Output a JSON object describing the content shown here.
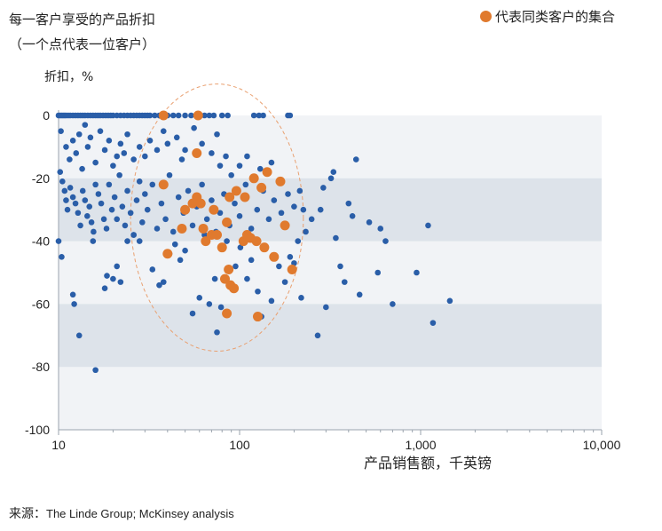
{
  "title": {
    "line1": "每一客户享受的产品折扣",
    "line2": "（一个点代表一位客户）"
  },
  "legend": {
    "label": "代表同类客户的集合",
    "color": "#e07a2e"
  },
  "source": {
    "prefix": "来源：",
    "text": "The Linde Group; McKinsey analysis"
  },
  "chart_data": {
    "type": "scatter",
    "xlabel": "产品销售额，千英镑",
    "ylabel": "折扣，%",
    "x_scale": "log",
    "xlim": [
      10,
      10000
    ],
    "ylim": [
      -100,
      0
    ],
    "x_ticks": [
      "10",
      "100",
      "1,000",
      "10,000"
    ],
    "y_ticks": [
      "0",
      "-20",
      "-40",
      "-60",
      "-80",
      "-100"
    ],
    "bands": [
      [
        -20,
        -40
      ],
      [
        -60,
        -80
      ]
    ],
    "colors": {
      "customer": "#2a5ea8",
      "cluster": "#e07a2e",
      "band": "#dde3ea",
      "background": "#f1f3f6",
      "ellipse": "#e9a070"
    },
    "cluster_ellipse": {
      "x_range": [
        25,
        225
      ],
      "y_range": [
        -75,
        10
      ]
    },
    "series": [
      {
        "name": "customer",
        "points": [
          [
            10,
            0
          ],
          [
            10.2,
            0
          ],
          [
            10.4,
            0
          ],
          [
            10.6,
            0
          ],
          [
            10.8,
            0
          ],
          [
            11,
            0
          ],
          [
            11.3,
            0
          ],
          [
            11.6,
            0
          ],
          [
            12,
            0
          ],
          [
            12.4,
            0
          ],
          [
            12.8,
            0
          ],
          [
            13.2,
            0
          ],
          [
            13.6,
            0
          ],
          [
            14,
            0
          ],
          [
            14.5,
            0
          ],
          [
            15,
            0
          ],
          [
            15.5,
            0
          ],
          [
            16,
            0
          ],
          [
            16.5,
            0
          ],
          [
            17,
            0
          ],
          [
            17.6,
            0
          ],
          [
            18.2,
            0
          ],
          [
            18.8,
            0
          ],
          [
            19.4,
            0
          ],
          [
            20,
            0
          ],
          [
            21,
            0
          ],
          [
            22,
            0
          ],
          [
            23,
            0
          ],
          [
            24,
            0
          ],
          [
            25,
            0
          ],
          [
            26,
            0
          ],
          [
            27,
            0
          ],
          [
            28,
            0
          ],
          [
            29,
            0
          ],
          [
            30,
            0
          ],
          [
            31,
            0
          ],
          [
            32,
            0
          ],
          [
            34,
            0
          ],
          [
            36,
            0
          ],
          [
            38,
            0
          ],
          [
            40,
            0
          ],
          [
            43,
            0
          ],
          [
            46,
            0
          ],
          [
            50,
            0
          ],
          [
            54,
            0
          ],
          [
            64,
            0
          ],
          [
            68,
            0
          ],
          [
            72,
            0
          ],
          [
            80,
            0
          ],
          [
            86,
            0
          ],
          [
            120,
            0
          ],
          [
            128,
            0
          ],
          [
            135,
            0
          ],
          [
            185,
            0
          ],
          [
            190,
            0
          ],
          [
            10.3,
            -5
          ],
          [
            11,
            -10
          ],
          [
            11.5,
            -14
          ],
          [
            12,
            -8
          ],
          [
            12.5,
            -12
          ],
          [
            13,
            -6
          ],
          [
            13.5,
            -17
          ],
          [
            14,
            -3
          ],
          [
            14.5,
            -10
          ],
          [
            15,
            -7
          ],
          [
            16,
            -15
          ],
          [
            17,
            -5
          ],
          [
            18,
            -11
          ],
          [
            19,
            -8
          ],
          [
            20,
            -16
          ],
          [
            21,
            -13
          ],
          [
            22,
            -9
          ],
          [
            23,
            -12
          ],
          [
            24,
            -6
          ],
          [
            26,
            -14
          ],
          [
            28,
            -10
          ],
          [
            30,
            -13
          ],
          [
            32,
            -8
          ],
          [
            35,
            -11
          ],
          [
            38,
            -5
          ],
          [
            40,
            -9
          ],
          [
            45,
            -7
          ],
          [
            48,
            -14
          ],
          [
            50,
            -11
          ],
          [
            56,
            -4
          ],
          [
            62,
            -9
          ],
          [
            70,
            -12
          ],
          [
            75,
            -6
          ],
          [
            78,
            -16
          ],
          [
            84,
            -13
          ],
          [
            90,
            -19
          ],
          [
            100,
            -16
          ],
          [
            110,
            -13
          ],
          [
            130,
            -17
          ],
          [
            150,
            -15
          ],
          [
            10.2,
            -18
          ],
          [
            10.5,
            -21
          ],
          [
            10.8,
            -24
          ],
          [
            11,
            -27
          ],
          [
            11.2,
            -30
          ],
          [
            11.6,
            -23
          ],
          [
            12,
            -26
          ],
          [
            12.4,
            -28
          ],
          [
            12.8,
            -31
          ],
          [
            13.2,
            -35
          ],
          [
            13.6,
            -24
          ],
          [
            14,
            -27
          ],
          [
            14.4,
            -32
          ],
          [
            14.8,
            -29
          ],
          [
            15.2,
            -34
          ],
          [
            15.6,
            -37
          ],
          [
            16,
            -22
          ],
          [
            16.6,
            -25
          ],
          [
            17.2,
            -28
          ],
          [
            17.8,
            -33
          ],
          [
            18.4,
            -36
          ],
          [
            19,
            -22
          ],
          [
            19.7,
            -30
          ],
          [
            20.4,
            -26
          ],
          [
            21,
            -33
          ],
          [
            21.7,
            -19
          ],
          [
            22.5,
            -29
          ],
          [
            23.3,
            -35
          ],
          [
            24,
            -24
          ],
          [
            25,
            -31
          ],
          [
            26,
            -38
          ],
          [
            27,
            -27
          ],
          [
            28,
            -21
          ],
          [
            29,
            -34
          ],
          [
            30,
            -25
          ],
          [
            31,
            -30
          ],
          [
            33,
            -22
          ],
          [
            35,
            -36
          ],
          [
            37,
            -28
          ],
          [
            39,
            -33
          ],
          [
            41,
            -19
          ],
          [
            43,
            -37
          ],
          [
            46,
            -26
          ],
          [
            49,
            -31
          ],
          [
            52,
            -24
          ],
          [
            55,
            -35
          ],
          [
            58,
            -29
          ],
          [
            62,
            -22
          ],
          [
            66,
            -33
          ],
          [
            70,
            -27
          ],
          [
            74,
            -37
          ],
          [
            78,
            -31
          ],
          [
            82,
            -25
          ],
          [
            88,
            -35
          ],
          [
            94,
            -28
          ],
          [
            100,
            -32
          ],
          [
            108,
            -22
          ],
          [
            116,
            -36
          ],
          [
            125,
            -30
          ],
          [
            135,
            -24
          ],
          [
            145,
            -33
          ],
          [
            155,
            -27
          ],
          [
            170,
            -31
          ],
          [
            185,
            -25
          ],
          [
            200,
            -29
          ],
          [
            215,
            -24
          ],
          [
            225,
            -30
          ],
          [
            10,
            -40
          ],
          [
            10.4,
            -45
          ],
          [
            12,
            -57
          ],
          [
            12.2,
            -60
          ],
          [
            13,
            -70
          ],
          [
            15.5,
            -40
          ],
          [
            16,
            -81
          ],
          [
            18,
            -55
          ],
          [
            18.5,
            -51
          ],
          [
            20,
            -52
          ],
          [
            21,
            -48
          ],
          [
            22,
            -53
          ],
          [
            24,
            -40
          ],
          [
            26,
            -38
          ],
          [
            28,
            -40
          ],
          [
            33,
            -49
          ],
          [
            36,
            -54
          ],
          [
            38,
            -53
          ],
          [
            41,
            -44
          ],
          [
            44,
            -41
          ],
          [
            47,
            -46
          ],
          [
            50,
            -43
          ],
          [
            55,
            -63
          ],
          [
            60,
            -58
          ],
          [
            64,
            -38
          ],
          [
            68,
            -60
          ],
          [
            73,
            -52
          ],
          [
            75,
            -69
          ],
          [
            79,
            -61
          ],
          [
            85,
            -40
          ],
          [
            95,
            -48
          ],
          [
            101,
            -42
          ],
          [
            110,
            -52
          ],
          [
            116,
            -46
          ],
          [
            126,
            -56
          ],
          [
            132,
            -64
          ],
          [
            150,
            -59
          ],
          [
            165,
            -48
          ],
          [
            178,
            -53
          ],
          [
            190,
            -45
          ],
          [
            200,
            -47
          ],
          [
            210,
            -40
          ],
          [
            219,
            -58
          ],
          [
            232,
            -37
          ],
          [
            250,
            -33
          ],
          [
            270,
            -70
          ],
          [
            280,
            -30
          ],
          [
            290,
            -23
          ],
          [
            300,
            -61
          ],
          [
            320,
            -20
          ],
          [
            330,
            -18
          ],
          [
            340,
            -39
          ],
          [
            360,
            -48
          ],
          [
            380,
            -53
          ],
          [
            400,
            -28
          ],
          [
            420,
            -32
          ],
          [
            440,
            -14
          ],
          [
            460,
            -57
          ],
          [
            520,
            -34
          ],
          [
            580,
            -50
          ],
          [
            600,
            -36
          ],
          [
            640,
            -40
          ],
          [
            700,
            -60
          ],
          [
            950,
            -50
          ],
          [
            1100,
            -35
          ],
          [
            1170,
            -66
          ],
          [
            1450,
            -59
          ]
        ]
      },
      {
        "name": "cluster",
        "points": [
          [
            38,
            0
          ],
          [
            59,
            0
          ],
          [
            38,
            -22
          ],
          [
            40,
            -44
          ],
          [
            48,
            -36
          ],
          [
            50,
            -30
          ],
          [
            55,
            -28
          ],
          [
            58,
            -12
          ],
          [
            58,
            -26
          ],
          [
            61,
            -28
          ],
          [
            63,
            -36
          ],
          [
            65,
            -40
          ],
          [
            70,
            -38
          ],
          [
            72,
            -30
          ],
          [
            75,
            -38
          ],
          [
            80,
            -42
          ],
          [
            83,
            -52
          ],
          [
            85,
            -34
          ],
          [
            85,
            -63
          ],
          [
            87,
            -49
          ],
          [
            88,
            -26
          ],
          [
            89,
            -54
          ],
          [
            93,
            -55
          ],
          [
            96,
            -24
          ],
          [
            105,
            -40
          ],
          [
            107,
            -26
          ],
          [
            110,
            -38
          ],
          [
            115,
            -39
          ],
          [
            120,
            -20
          ],
          [
            124,
            -40
          ],
          [
            126,
            -64
          ],
          [
            132,
            -23
          ],
          [
            137,
            -42
          ],
          [
            142,
            -18
          ],
          [
            155,
            -45
          ],
          [
            168,
            -21
          ],
          [
            178,
            -35
          ],
          [
            195,
            -49
          ]
        ]
      }
    ]
  }
}
